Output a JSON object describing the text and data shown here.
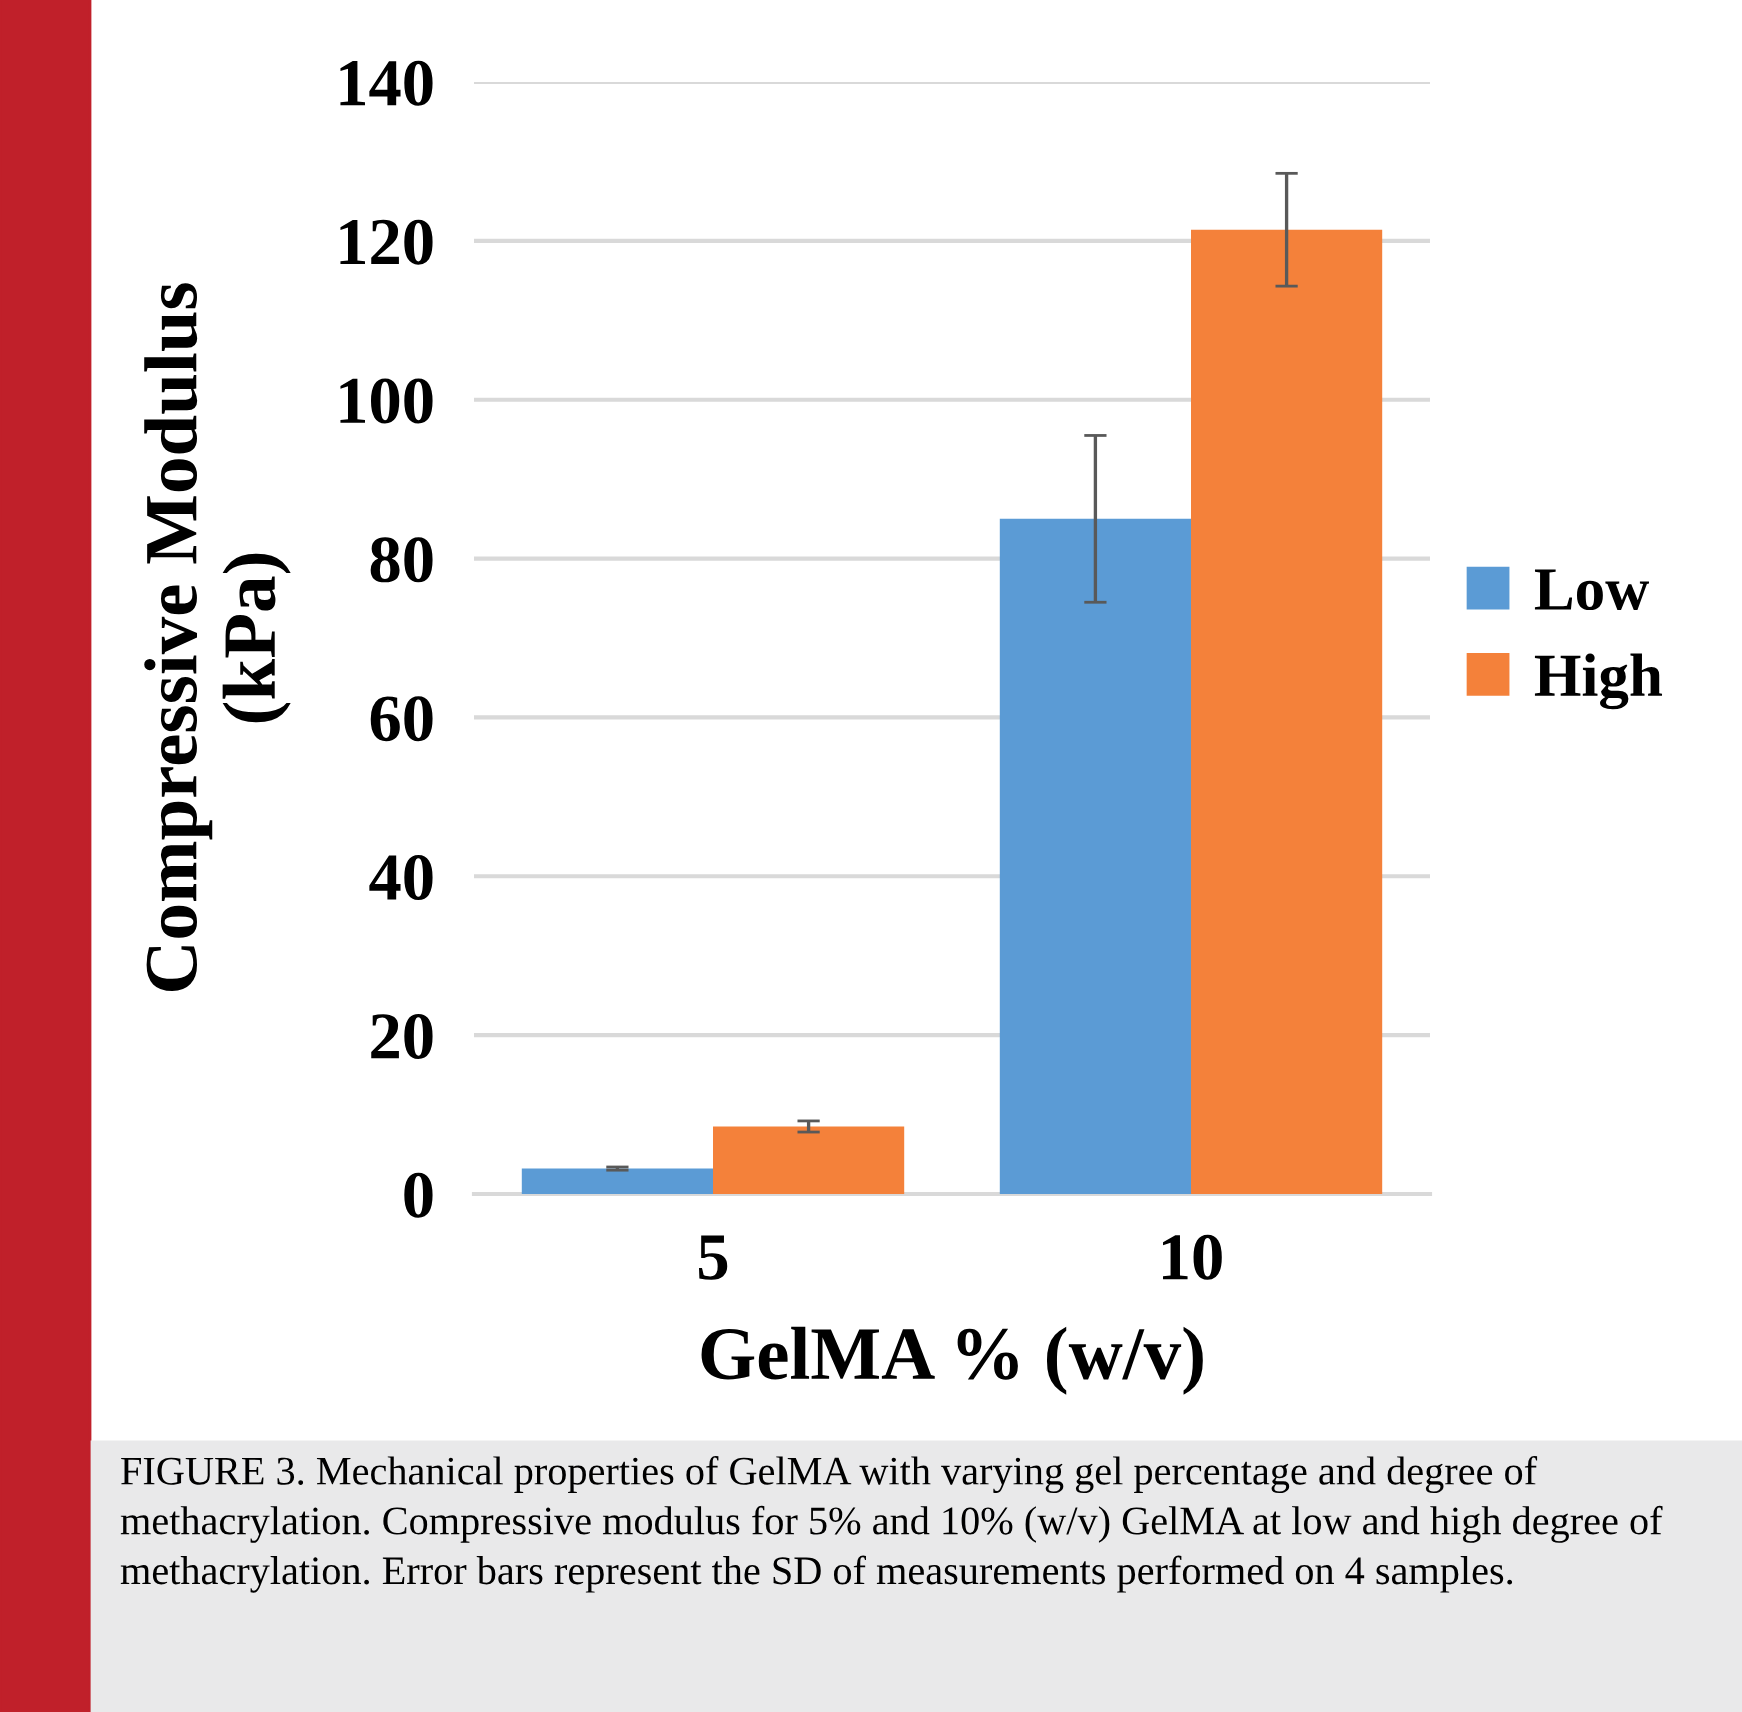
{
  "chart_data": {
    "type": "bar",
    "xlabel": "GelMA % (w/v)",
    "ylabel": "Compressive Modulus\n(kPa)",
    "categories": [
      "5",
      "10"
    ],
    "series": [
      {
        "name": "Low",
        "color": "#5b9bd5",
        "values": [
          3.2,
          85.0
        ],
        "errors": [
          0.2,
          10.5
        ]
      },
      {
        "name": "High",
        "color": "#f4813a",
        "values": [
          8.5,
          121.4
        ],
        "errors": [
          0.7,
          7.1
        ]
      }
    ],
    "ylim": [
      0,
      140
    ],
    "yticks": [
      0,
      20,
      40,
      60,
      80,
      100,
      120,
      140
    ],
    "grid": "y",
    "legend": "right",
    "annotations": [
      "FIGURE 3. Mechanical properties of GelMA with varying gel percentage and degree of methacrylation. Compressive modulus for 5% and 10% (w/v) GelMA at low and high degree of methacrylation. Error bars represent the SD of measurements performed on 4 samples."
    ]
  }
}
